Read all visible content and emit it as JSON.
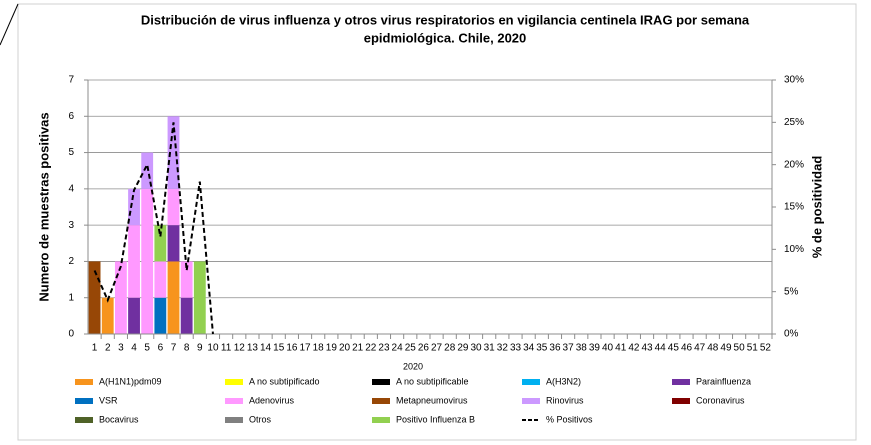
{
  "chart_data": {
    "type": "stacked-bar-line",
    "title": [
      "Distribución de virus influenza y otros virus respiratorios en vigilancia centinela IRAG por semana",
      "epidmiológica. Chile, 2020"
    ],
    "x_label": "2020",
    "y_label": "Numero de muestras positivas",
    "y2_label": "% de positividad",
    "categories": [
      "1",
      "2",
      "3",
      "4",
      "5",
      "6",
      "7",
      "8",
      "9",
      "10",
      "11",
      "12",
      "13",
      "14",
      "15",
      "16",
      "17",
      "18",
      "19",
      "20",
      "21",
      "22",
      "23",
      "24",
      "25",
      "26",
      "27",
      "28",
      "29",
      "30",
      "31",
      "32",
      "33",
      "34",
      "35",
      "36",
      "37",
      "38",
      "39",
      "40",
      "41",
      "42",
      "43",
      "44",
      "45",
      "46",
      "47",
      "48",
      "49",
      "50",
      "51",
      "52"
    ],
    "ylim": [
      0,
      7
    ],
    "yticks": [
      0,
      1,
      2,
      3,
      4,
      5,
      6,
      7
    ],
    "y2lim": [
      0,
      30
    ],
    "y2ticks": [
      {
        "value": 0,
        "label": "0%"
      },
      {
        "value": 5,
        "label": "5%"
      },
      {
        "value": 10,
        "label": "10%"
      },
      {
        "value": 15,
        "label": "15%"
      },
      {
        "value": 20,
        "label": "20%"
      },
      {
        "value": 25,
        "label": "25%"
      },
      {
        "value": 30,
        "label": "30%"
      }
    ],
    "grid": true,
    "series": [
      {
        "name": "A(H1N1)pdm09",
        "color": "#f7941d",
        "values": [
          0,
          1,
          0,
          0,
          0,
          0,
          2,
          0,
          0,
          0,
          0,
          0,
          0,
          0,
          0,
          0,
          0,
          0,
          0,
          0,
          0,
          0,
          0,
          0,
          0,
          0,
          0,
          0,
          0,
          0,
          0,
          0,
          0,
          0,
          0,
          0,
          0,
          0,
          0,
          0,
          0,
          0,
          0,
          0,
          0,
          0,
          0,
          0,
          0,
          0,
          0,
          0
        ]
      },
      {
        "name": "A no subtipificado",
        "color": "#ffff00",
        "values": [
          0,
          0,
          0,
          0,
          0,
          0,
          0,
          0,
          0,
          0,
          0,
          0,
          0,
          0,
          0,
          0,
          0,
          0,
          0,
          0,
          0,
          0,
          0,
          0,
          0,
          0,
          0,
          0,
          0,
          0,
          0,
          0,
          0,
          0,
          0,
          0,
          0,
          0,
          0,
          0,
          0,
          0,
          0,
          0,
          0,
          0,
          0,
          0,
          0,
          0,
          0,
          0
        ]
      },
      {
        "name": "A no subtipificable",
        "color": "#000000",
        "values": [
          0,
          0,
          0,
          0,
          0,
          0,
          0,
          0,
          0,
          0,
          0,
          0,
          0,
          0,
          0,
          0,
          0,
          0,
          0,
          0,
          0,
          0,
          0,
          0,
          0,
          0,
          0,
          0,
          0,
          0,
          0,
          0,
          0,
          0,
          0,
          0,
          0,
          0,
          0,
          0,
          0,
          0,
          0,
          0,
          0,
          0,
          0,
          0,
          0,
          0,
          0,
          0
        ]
      },
      {
        "name": "A(H3N2)",
        "color": "#00b0f0",
        "values": [
          0,
          0,
          0,
          0,
          0,
          0,
          0,
          0,
          0,
          0,
          0,
          0,
          0,
          0,
          0,
          0,
          0,
          0,
          0,
          0,
          0,
          0,
          0,
          0,
          0,
          0,
          0,
          0,
          0,
          0,
          0,
          0,
          0,
          0,
          0,
          0,
          0,
          0,
          0,
          0,
          0,
          0,
          0,
          0,
          0,
          0,
          0,
          0,
          0,
          0,
          0,
          0
        ]
      },
      {
        "name": "Parainfluenza",
        "color": "#7030a0",
        "values": [
          0,
          0,
          0,
          1,
          0,
          0,
          1,
          1,
          0,
          0,
          0,
          0,
          0,
          0,
          0,
          0,
          0,
          0,
          0,
          0,
          0,
          0,
          0,
          0,
          0,
          0,
          0,
          0,
          0,
          0,
          0,
          0,
          0,
          0,
          0,
          0,
          0,
          0,
          0,
          0,
          0,
          0,
          0,
          0,
          0,
          0,
          0,
          0,
          0,
          0,
          0,
          0
        ]
      },
      {
        "name": "VSR",
        "color": "#0070c0",
        "values": [
          0,
          0,
          0,
          0,
          0,
          1,
          0,
          0,
          0,
          0,
          0,
          0,
          0,
          0,
          0,
          0,
          0,
          0,
          0,
          0,
          0,
          0,
          0,
          0,
          0,
          0,
          0,
          0,
          0,
          0,
          0,
          0,
          0,
          0,
          0,
          0,
          0,
          0,
          0,
          0,
          0,
          0,
          0,
          0,
          0,
          0,
          0,
          0,
          0,
          0,
          0,
          0
        ]
      },
      {
        "name": "Adenovirus",
        "color": "#ff99ff",
        "values": [
          0,
          0,
          2,
          2,
          4,
          1,
          1,
          1,
          0,
          0,
          0,
          0,
          0,
          0,
          0,
          0,
          0,
          0,
          0,
          0,
          0,
          0,
          0,
          0,
          0,
          0,
          0,
          0,
          0,
          0,
          0,
          0,
          0,
          0,
          0,
          0,
          0,
          0,
          0,
          0,
          0,
          0,
          0,
          0,
          0,
          0,
          0,
          0,
          0,
          0,
          0,
          0
        ]
      },
      {
        "name": "Metapneumovirus",
        "color": "#974706",
        "values": [
          2,
          0,
          0,
          0,
          0,
          0,
          0,
          0,
          0,
          0,
          0,
          0,
          0,
          0,
          0,
          0,
          0,
          0,
          0,
          0,
          0,
          0,
          0,
          0,
          0,
          0,
          0,
          0,
          0,
          0,
          0,
          0,
          0,
          0,
          0,
          0,
          0,
          0,
          0,
          0,
          0,
          0,
          0,
          0,
          0,
          0,
          0,
          0,
          0,
          0,
          0,
          0
        ]
      },
      {
        "name": "Rinovirus",
        "color": "#cc99ff",
        "values": [
          0,
          0,
          0,
          1,
          1,
          0,
          2,
          0,
          0,
          0,
          0,
          0,
          0,
          0,
          0,
          0,
          0,
          0,
          0,
          0,
          0,
          0,
          0,
          0,
          0,
          0,
          0,
          0,
          0,
          0,
          0,
          0,
          0,
          0,
          0,
          0,
          0,
          0,
          0,
          0,
          0,
          0,
          0,
          0,
          0,
          0,
          0,
          0,
          0,
          0,
          0,
          0
        ]
      },
      {
        "name": "Coronavirus",
        "color": "#800000",
        "values": [
          0,
          0,
          0,
          0,
          0,
          0,
          0,
          0,
          0,
          0,
          0,
          0,
          0,
          0,
          0,
          0,
          0,
          0,
          0,
          0,
          0,
          0,
          0,
          0,
          0,
          0,
          0,
          0,
          0,
          0,
          0,
          0,
          0,
          0,
          0,
          0,
          0,
          0,
          0,
          0,
          0,
          0,
          0,
          0,
          0,
          0,
          0,
          0,
          0,
          0,
          0,
          0
        ]
      },
      {
        "name": "Bocavirus",
        "color": "#4f6228",
        "values": [
          0,
          0,
          0,
          0,
          0,
          0,
          0,
          0,
          0,
          0,
          0,
          0,
          0,
          0,
          0,
          0,
          0,
          0,
          0,
          0,
          0,
          0,
          0,
          0,
          0,
          0,
          0,
          0,
          0,
          0,
          0,
          0,
          0,
          0,
          0,
          0,
          0,
          0,
          0,
          0,
          0,
          0,
          0,
          0,
          0,
          0,
          0,
          0,
          0,
          0,
          0,
          0
        ]
      },
      {
        "name": "Otros",
        "color": "#808080",
        "values": [
          0,
          0,
          0,
          0,
          0,
          0,
          0,
          0,
          0,
          0,
          0,
          0,
          0,
          0,
          0,
          0,
          0,
          0,
          0,
          0,
          0,
          0,
          0,
          0,
          0,
          0,
          0,
          0,
          0,
          0,
          0,
          0,
          0,
          0,
          0,
          0,
          0,
          0,
          0,
          0,
          0,
          0,
          0,
          0,
          0,
          0,
          0,
          0,
          0,
          0,
          0,
          0
        ]
      },
      {
        "name": "Positivo Influenza  B",
        "color": "#92d050",
        "values": [
          0,
          0,
          0,
          0,
          0,
          1,
          0,
          0,
          2,
          0,
          0,
          0,
          0,
          0,
          0,
          0,
          0,
          0,
          0,
          0,
          0,
          0,
          0,
          0,
          0,
          0,
          0,
          0,
          0,
          0,
          0,
          0,
          0,
          0,
          0,
          0,
          0,
          0,
          0,
          0,
          0,
          0,
          0,
          0,
          0,
          0,
          0,
          0,
          0,
          0,
          0,
          0
        ]
      },
      {
        "name": "% Positivos",
        "color": "#000000",
        "type": "line",
        "dashed": true,
        "axis": "y2",
        "values": [
          7.5,
          4,
          8,
          17,
          20,
          11.5,
          25,
          7.5,
          18,
          0,
          null,
          null,
          null,
          null,
          null,
          null,
          null,
          null,
          null,
          null,
          null,
          null,
          null,
          null,
          null,
          null,
          null,
          null,
          null,
          null,
          null,
          null,
          null,
          null,
          null,
          null,
          null,
          null,
          null,
          null,
          null,
          null,
          null,
          null,
          null,
          null,
          null,
          null,
          null,
          null,
          null,
          null
        ]
      }
    ]
  }
}
